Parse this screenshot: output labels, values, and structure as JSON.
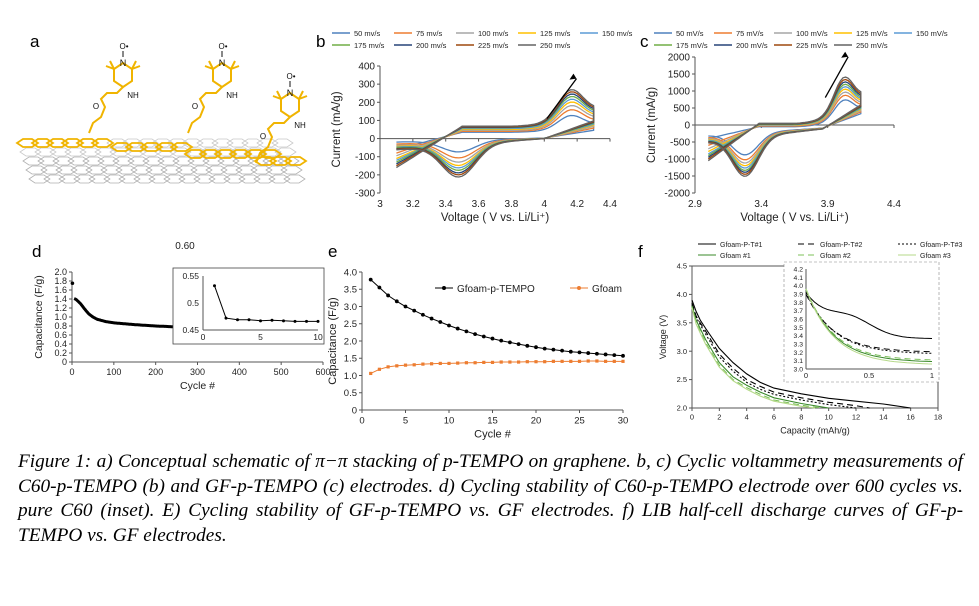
{
  "panels": {
    "a": "a",
    "b": "b",
    "c": "c",
    "d": "d",
    "e": "e",
    "f": "f"
  },
  "caption": "Figure 1: a) Conceptual schematic of π−π stacking of p-TEMPO on graphene. b, c) Cyclic voltammetry measurements of C60-p-TEMPO (b) and GF-p-TEMPO (c) electrodes. d) Cycling stability of C60-p-TEMPO electrode over 600 cycles vs. pure C60 (inset). E) Cycling stability of GF-p-TEMPO vs. GF electrodes. f) LIB half-cell discharge curves of GF-p-TEMPO vs. GF electrodes.",
  "schematic": {
    "radical": "O•",
    "n": "N",
    "o": "O",
    "nh": "NH",
    "colors": {
      "tempo": "#f0b400",
      "graphene": "#9a9a9a"
    }
  },
  "chart_data": [
    {
      "id": "b",
      "type": "line",
      "xlabel": "Voltage ( V vs. Li/Li⁺)",
      "ylabel": "Current (mA/g)",
      "xlim": [
        3,
        4.4
      ],
      "ylim": [
        -300,
        400
      ],
      "xticks": [
        "3",
        "3.2",
        "3.4",
        "3.6",
        "3.8",
        "4",
        "4.2",
        "4.4"
      ],
      "yticks": [
        "-300",
        "-200",
        "-100",
        "0",
        "100",
        "200",
        "300",
        "400"
      ],
      "series_labels": [
        "50 mv/s",
        "75 mv/s",
        "100 mv/s",
        "125 mv/s",
        "150 mv/s",
        "175 mv/s",
        "200 mv/s",
        "225 mv/s",
        "250 mv/s"
      ],
      "colors": [
        "#4f81bd",
        "#ed7d31",
        "#a5a5a5",
        "#ffc000",
        "#5b9bd5",
        "#70ad47",
        "#264478",
        "#9e480e",
        "#636363"
      ],
      "shape": {
        "vmin": 3.1,
        "vmax": 4.3,
        "ox_peak_v": 4.16,
        "ox_peak_i": [
          130,
          165,
          190,
          210,
          225,
          240,
          255,
          268,
          280
        ],
        "red_peak_v": 3.48,
        "red_peak_i": [
          -85,
          -120,
          -145,
          -165,
          -180,
          -195,
          -210,
          -222,
          -235
        ],
        "start_upper": [
          -60,
          -80,
          -95,
          -110,
          -120,
          -130,
          -140,
          -150,
          -160
        ],
        "mid_upper": [
          35,
          40,
          45,
          50,
          55,
          60,
          62,
          65,
          68
        ]
      },
      "legend": "top"
    },
    {
      "id": "c",
      "type": "line",
      "xlabel": "Voltage ( V vs. Li/Li⁺)",
      "ylabel": "Current (mA/g)",
      "xlim": [
        2.9,
        4.4
      ],
      "ylim": [
        -2000,
        2000
      ],
      "xticks": [
        "2.9",
        "3.4",
        "3.9",
        "4.4"
      ],
      "yticks": [
        "-2000",
        "-1500",
        "-1000",
        "-500",
        "0",
        "500",
        "1000",
        "1500",
        "2000"
      ],
      "series_labels": [
        "50 mV/s",
        "75 mV/s",
        "100 mV/s",
        "125 mV/s",
        "150 mV/s",
        "175 mV/s",
        "200 mV/s",
        "225 mV/s",
        "250 mV/s"
      ],
      "colors": [
        "#4f81bd",
        "#ed7d31",
        "#a5a5a5",
        "#ffc000",
        "#5b9bd5",
        "#70ad47",
        "#264478",
        "#9e480e",
        "#636363"
      ],
      "shape": {
        "vmin": 3.0,
        "vmax": 4.15,
        "ox_peak_v": 4.02,
        "ox_peak_i": [
          950,
          1100,
          1200,
          1300,
          1380,
          1460,
          1540,
          1620,
          1700
        ],
        "red_peak_v": 3.28,
        "red_peak_i": [
          -850,
          -1000,
          -1100,
          -1180,
          -1250,
          -1320,
          -1380,
          -1440,
          -1500
        ],
        "start_upper": [
          -400,
          -600,
          -700,
          -780,
          -850,
          -900,
          -950,
          -1000,
          -1050
        ],
        "mid_upper": [
          -50,
          -30,
          -10,
          0,
          10,
          20,
          30,
          40,
          50
        ]
      },
      "legend": "top"
    },
    {
      "id": "d",
      "type": "line",
      "title": "0.60",
      "xlabel": "Cycle #",
      "ylabel": "Capacitance (F/g)",
      "xlim": [
        0,
        600
      ],
      "ylim": [
        0,
        2.0
      ],
      "xticks": [
        "0",
        "100",
        "200",
        "300",
        "400",
        "500",
        "600"
      ],
      "yticks": [
        "0",
        "0.2",
        "0.4",
        "0.6",
        "0.8",
        "1.0",
        "1.2",
        "1.4",
        "1.6",
        "1.8",
        "2.0"
      ],
      "series": [
        {
          "x": [
            1,
            5,
            10,
            20,
            30,
            40,
            50,
            60,
            80,
            100,
            150,
            200,
            300,
            400,
            500,
            600
          ],
          "y": [
            1.75,
            1.41,
            1.39,
            1.3,
            1.18,
            1.07,
            1.0,
            0.95,
            0.9,
            0.87,
            0.83,
            0.8,
            0.76,
            0.73,
            0.71,
            0.69
          ]
        }
      ],
      "inset": {
        "xlim": [
          0,
          10
        ],
        "ylim": [
          0.45,
          0.55
        ],
        "xticks": [
          "0",
          "5",
          "10"
        ],
        "yticks": [
          "0.45",
          "0.5",
          "0.55"
        ],
        "x": [
          1,
          2,
          3,
          4,
          5,
          6,
          7,
          8,
          9,
          10
        ],
        "y": [
          0.532,
          0.472,
          0.469,
          0.469,
          0.467,
          0.468,
          0.467,
          0.466,
          0.466,
          0.466
        ]
      }
    },
    {
      "id": "e",
      "type": "line",
      "xlabel": "Cycle #",
      "ylabel": "Capacitance (F/g)",
      "xlim": [
        0,
        30
      ],
      "ylim": [
        0,
        4.0
      ],
      "xticks": [
        "0",
        "5",
        "10",
        "15",
        "20",
        "25",
        "30"
      ],
      "yticks": [
        "0",
        "0.5",
        "1.0",
        "1.5",
        "2.0",
        "2.5",
        "3.0",
        "3.5",
        "4.0"
      ],
      "series": [
        {
          "name": "Gfoam-p-TEMPO",
          "color": "#000000",
          "x": [
            1,
            2,
            3,
            4,
            5,
            6,
            7,
            8,
            9,
            10,
            11,
            12,
            13,
            14,
            15,
            16,
            17,
            18,
            19,
            20,
            21,
            22,
            23,
            24,
            25,
            26,
            27,
            28,
            29,
            30
          ],
          "y": [
            3.78,
            3.55,
            3.32,
            3.15,
            3.0,
            2.88,
            2.76,
            2.65,
            2.55,
            2.45,
            2.36,
            2.28,
            2.2,
            2.13,
            2.07,
            2.01,
            1.96,
            1.91,
            1.86,
            1.82,
            1.78,
            1.75,
            1.72,
            1.69,
            1.67,
            1.65,
            1.63,
            1.61,
            1.59,
            1.57
          ]
        },
        {
          "name": "Gfoam",
          "color": "#ed7d31",
          "x": [
            1,
            2,
            3,
            4,
            5,
            6,
            7,
            8,
            9,
            10,
            11,
            12,
            13,
            14,
            15,
            16,
            17,
            18,
            19,
            20,
            21,
            22,
            23,
            24,
            25,
            26,
            27,
            28,
            29,
            30
          ],
          "y": [
            1.06,
            1.18,
            1.25,
            1.28,
            1.3,
            1.31,
            1.33,
            1.34,
            1.35,
            1.35,
            1.36,
            1.37,
            1.37,
            1.38,
            1.38,
            1.39,
            1.39,
            1.39,
            1.4,
            1.4,
            1.4,
            1.41,
            1.41,
            1.41,
            1.41,
            1.42,
            1.42,
            1.41,
            1.41,
            1.41
          ]
        }
      ],
      "legend": "top-right"
    },
    {
      "id": "f",
      "type": "line",
      "xlabel": "Capacity (mAh/g)",
      "ylabel": "Voltage (V)",
      "xlim": [
        0,
        18
      ],
      "ylim": [
        2.0,
        4.5
      ],
      "xticks": [
        "0",
        "2",
        "4",
        "6",
        "8",
        "10",
        "12",
        "14",
        "16",
        "18"
      ],
      "yticks": [
        "2.0",
        "2.5",
        "3.0",
        "3.5",
        "4.0",
        "4.5"
      ],
      "series": [
        {
          "name": "Gfoam-P-T#1",
          "color": "#000000",
          "dash": "",
          "x": [
            0,
            0.3,
            0.6,
            1,
            2,
            3,
            4,
            5,
            6,
            8,
            10,
            12,
            14,
            16
          ],
          "y": [
            3.9,
            3.7,
            3.55,
            3.4,
            3.05,
            2.8,
            2.6,
            2.45,
            2.35,
            2.25,
            2.17,
            2.12,
            2.07,
            2.0
          ]
        },
        {
          "name": "Gfoam-P-T#2",
          "color": "#000000",
          "dash": "6,4",
          "x": [
            0,
            0.3,
            0.6,
            1,
            2,
            3,
            4,
            5,
            6,
            8,
            10,
            12,
            13
          ],
          "y": [
            3.85,
            3.62,
            3.5,
            3.35,
            2.95,
            2.7,
            2.5,
            2.38,
            2.28,
            2.18,
            2.1,
            2.04,
            2.0
          ]
        },
        {
          "name": "Gfoam-P-T#3",
          "color": "#000000",
          "dash": "2,2",
          "x": [
            0,
            0.3,
            0.6,
            1,
            2,
            3,
            4,
            5,
            6,
            8,
            10,
            12
          ],
          "y": [
            3.82,
            3.6,
            3.47,
            3.3,
            2.9,
            2.65,
            2.45,
            2.33,
            2.24,
            2.14,
            2.06,
            2.0
          ]
        },
        {
          "name": "Gfoam #1",
          "color": "#3a8a2a",
          "dash": "",
          "x": [
            0,
            0.3,
            0.6,
            1,
            2,
            3,
            4,
            5,
            6,
            8,
            10
          ],
          "y": [
            3.8,
            3.55,
            3.4,
            3.2,
            2.8,
            2.55,
            2.4,
            2.28,
            2.18,
            2.08,
            2.0
          ]
        },
        {
          "name": "Gfoam #2",
          "color": "#7cc05a",
          "dash": "6,4",
          "x": [
            0,
            0.3,
            0.6,
            1,
            2,
            3,
            4,
            5,
            6,
            8,
            9.5
          ],
          "y": [
            3.78,
            3.5,
            3.35,
            3.15,
            2.75,
            2.5,
            2.36,
            2.24,
            2.14,
            2.05,
            2.0
          ]
        },
        {
          "name": "Gfoam #3",
          "color": "#b6d98a",
          "dash": "",
          "x": [
            0,
            0.3,
            0.6,
            1,
            2,
            3,
            4,
            5,
            6,
            8,
            9
          ],
          "y": [
            3.76,
            3.48,
            3.32,
            3.12,
            2.72,
            2.48,
            2.33,
            2.21,
            2.12,
            2.03,
            2.0
          ]
        }
      ],
      "inset": {
        "xlim": [
          0,
          1
        ],
        "ylim": [
          3.0,
          4.2
        ],
        "xticks": [
          "0",
          "0.5",
          "1"
        ],
        "yticks": [
          "3.0",
          "3.1",
          "3.2",
          "3.3",
          "3.4",
          "3.5",
          "3.6",
          "3.7",
          "3.8",
          "3.9",
          "4.0",
          "4.1",
          "4.2"
        ]
      },
      "legend": "top"
    }
  ]
}
